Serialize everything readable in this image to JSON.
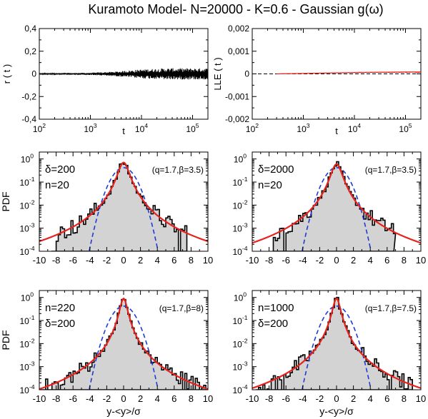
{
  "title": "Kuramoto Model- N=20000 - K=0.6 - Gaussian g(ω)",
  "colors": {
    "histogram_fill": "#d3d3d3",
    "histogram_edge": "#000000",
    "q_gaussian": "#e8231e",
    "gaussian": "#1f3ad8",
    "lle_line": "#e8231e",
    "r_line": "#000000"
  },
  "chart_data": [
    {
      "id": "r_t",
      "type": "line",
      "ylabel": "r ( t )",
      "xlabel": "t",
      "xscale": "log",
      "xlim": [
        100,
        200000
      ],
      "ylim": [
        -0.4,
        0.4
      ],
      "yticks": [
        "-0,4",
        "-0,2",
        "0",
        "0,2",
        "0,4"
      ],
      "xticks": [
        {
          "base": "10",
          "exp": "2"
        },
        {
          "base": "10",
          "exp": "3"
        },
        {
          "base": "10",
          "exp": "4"
        },
        {
          "base": "10",
          "exp": "5"
        }
      ],
      "series": [
        {
          "amplitude_points": [
            [
              100,
              0.006
            ],
            [
              1000,
              0.01
            ],
            [
              3000,
              0.02
            ],
            [
              10000,
              0.04
            ],
            [
              30000,
              0.05
            ],
            [
              100000,
              0.05
            ],
            [
              200000,
              0.05
            ]
          ]
        }
      ]
    },
    {
      "id": "lle_t",
      "type": "line",
      "ylabel": "LLE ( t )",
      "xlabel": "t",
      "xscale": "log",
      "xlim": [
        100,
        200000
      ],
      "ylim": [
        -0.002,
        0.002
      ],
      "yticks": [
        "-0,002",
        "-0,001",
        "0",
        "0,001",
        "0,002"
      ],
      "xticks": [
        {
          "base": "10",
          "exp": "2"
        },
        {
          "base": "10",
          "exp": "3"
        },
        {
          "base": "10",
          "exp": "4"
        },
        {
          "base": "10",
          "exp": "5"
        }
      ],
      "series": [
        {
          "points": [
            [
              300,
              0.0
            ],
            [
              1000,
              2e-05
            ],
            [
              3000,
              4e-05
            ],
            [
              10000,
              6e-05
            ],
            [
              30000,
              7e-05
            ],
            [
              100000,
              8e-05
            ],
            [
              200000,
              8e-05
            ]
          ]
        }
      ],
      "reference_line": 0
    },
    {
      "id": "pdf_1",
      "type": "area",
      "ylabel": "PDF",
      "xlabel": "",
      "ylim_log": [
        -4,
        0.3
      ],
      "xlim": [
        -10,
        10
      ],
      "labels": [
        "δ=200",
        "n=20"
      ],
      "fit_label": "(q=1.7,β=3.5)",
      "q": 1.7,
      "beta": 3.5,
      "peak": 0.7,
      "hist_range": [
        -8.5,
        7.5
      ]
    },
    {
      "id": "pdf_2",
      "type": "area",
      "ylabel": "",
      "xlabel": "",
      "ylim_log": [
        -4,
        0.3
      ],
      "xlim": [
        -10,
        10
      ],
      "labels": [
        "δ=2000",
        "n=20"
      ],
      "fit_label": "(q=1.7,β=3.5)",
      "q": 1.7,
      "beta": 3.5,
      "peak": 0.6,
      "hist_range": [
        -7.5,
        6.8
      ]
    },
    {
      "id": "pdf_3",
      "type": "area",
      "ylabel": "PDF",
      "xlabel": "y-<y>/σ",
      "ylim_log": [
        -4,
        0.3
      ],
      "xlim": [
        -10,
        10
      ],
      "labels": [
        "n=220",
        "δ=200"
      ],
      "fit_label": "(q=1.7,β=8)",
      "q": 1.7,
      "beta": 8,
      "peak": 0.9,
      "hist_range": [
        -10,
        10
      ]
    },
    {
      "id": "pdf_4",
      "type": "area",
      "ylabel": "",
      "xlabel": "y-<y>/σ",
      "ylim_log": [
        -4,
        0.3
      ],
      "xlim": [
        -10,
        10
      ],
      "labels": [
        "n=1000",
        "δ=200"
      ],
      "fit_label": "(q=1.7,β=7.5)",
      "q": 1.7,
      "beta": 7.5,
      "peak": 0.9,
      "hist_range": [
        -9.5,
        9.0
      ]
    }
  ],
  "pdf_xticks": [
    "-10",
    "-8",
    "-6",
    "-4",
    "-2",
    "0",
    "2",
    "4",
    "6",
    "8",
    "10"
  ],
  "pdf_yticks": [
    {
      "base": "10",
      "exp": "0"
    },
    {
      "base": "10",
      "exp": "-1"
    },
    {
      "base": "10",
      "exp": "-2"
    },
    {
      "base": "10",
      "exp": "-3"
    },
    {
      "base": "10",
      "exp": "-4"
    }
  ]
}
